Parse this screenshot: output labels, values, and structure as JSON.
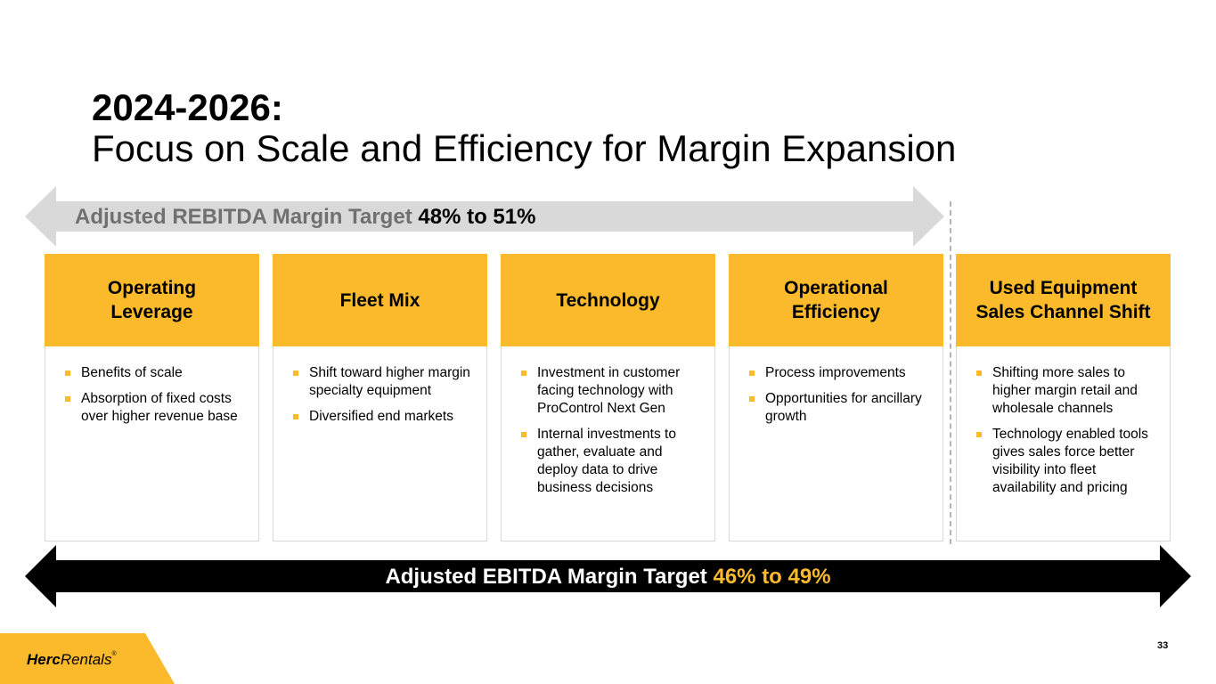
{
  "title": {
    "line1": "2024-2026:",
    "line2": "Focus on Scale and Efficiency for Margin Expansion"
  },
  "rebitda_banner": {
    "label": "Adjusted REBITDA Margin Target",
    "low": "48%",
    "connector": "to",
    "high": "51%"
  },
  "ebitda_banner": {
    "label": "Adjusted EBITDA Margin Target",
    "low": "46%",
    "connector": "to",
    "high": "49%"
  },
  "cards": [
    {
      "heading": [
        "Operating",
        "Leverage"
      ],
      "bullets": [
        "Benefits of scale",
        "Absorption of fixed costs over higher revenue base"
      ]
    },
    {
      "heading": [
        "Fleet Mix"
      ],
      "bullets": [
        "Shift toward higher margin specialty equipment",
        "Diversified end markets"
      ]
    },
    {
      "heading": [
        "Technology"
      ],
      "bullets": [
        "Investment in customer facing technology with ProControl Next Gen",
        "Internal investments to gather, evaluate and deploy data to drive business decisions"
      ]
    },
    {
      "heading": [
        "Operational",
        "Efficiency"
      ],
      "bullets": [
        "Process improvements",
        "Opportunities for ancillary growth"
      ]
    },
    {
      "heading": [
        "Used Equipment",
        "Sales Channel Shift"
      ],
      "bullets": [
        "Shifting more sales to higher margin retail and wholesale channels",
        "Technology enabled tools gives sales force better visibility into fleet availability and pricing"
      ]
    }
  ],
  "logo": {
    "herc": "Herc",
    "rentals": "Rentals",
    "reg": "®"
  },
  "page_number": "33",
  "colors": {
    "accent": "#FBBA2B",
    "gray_arrow": "#D9D9D9",
    "black_arrow": "#000000",
    "gray_text": "#707070"
  }
}
